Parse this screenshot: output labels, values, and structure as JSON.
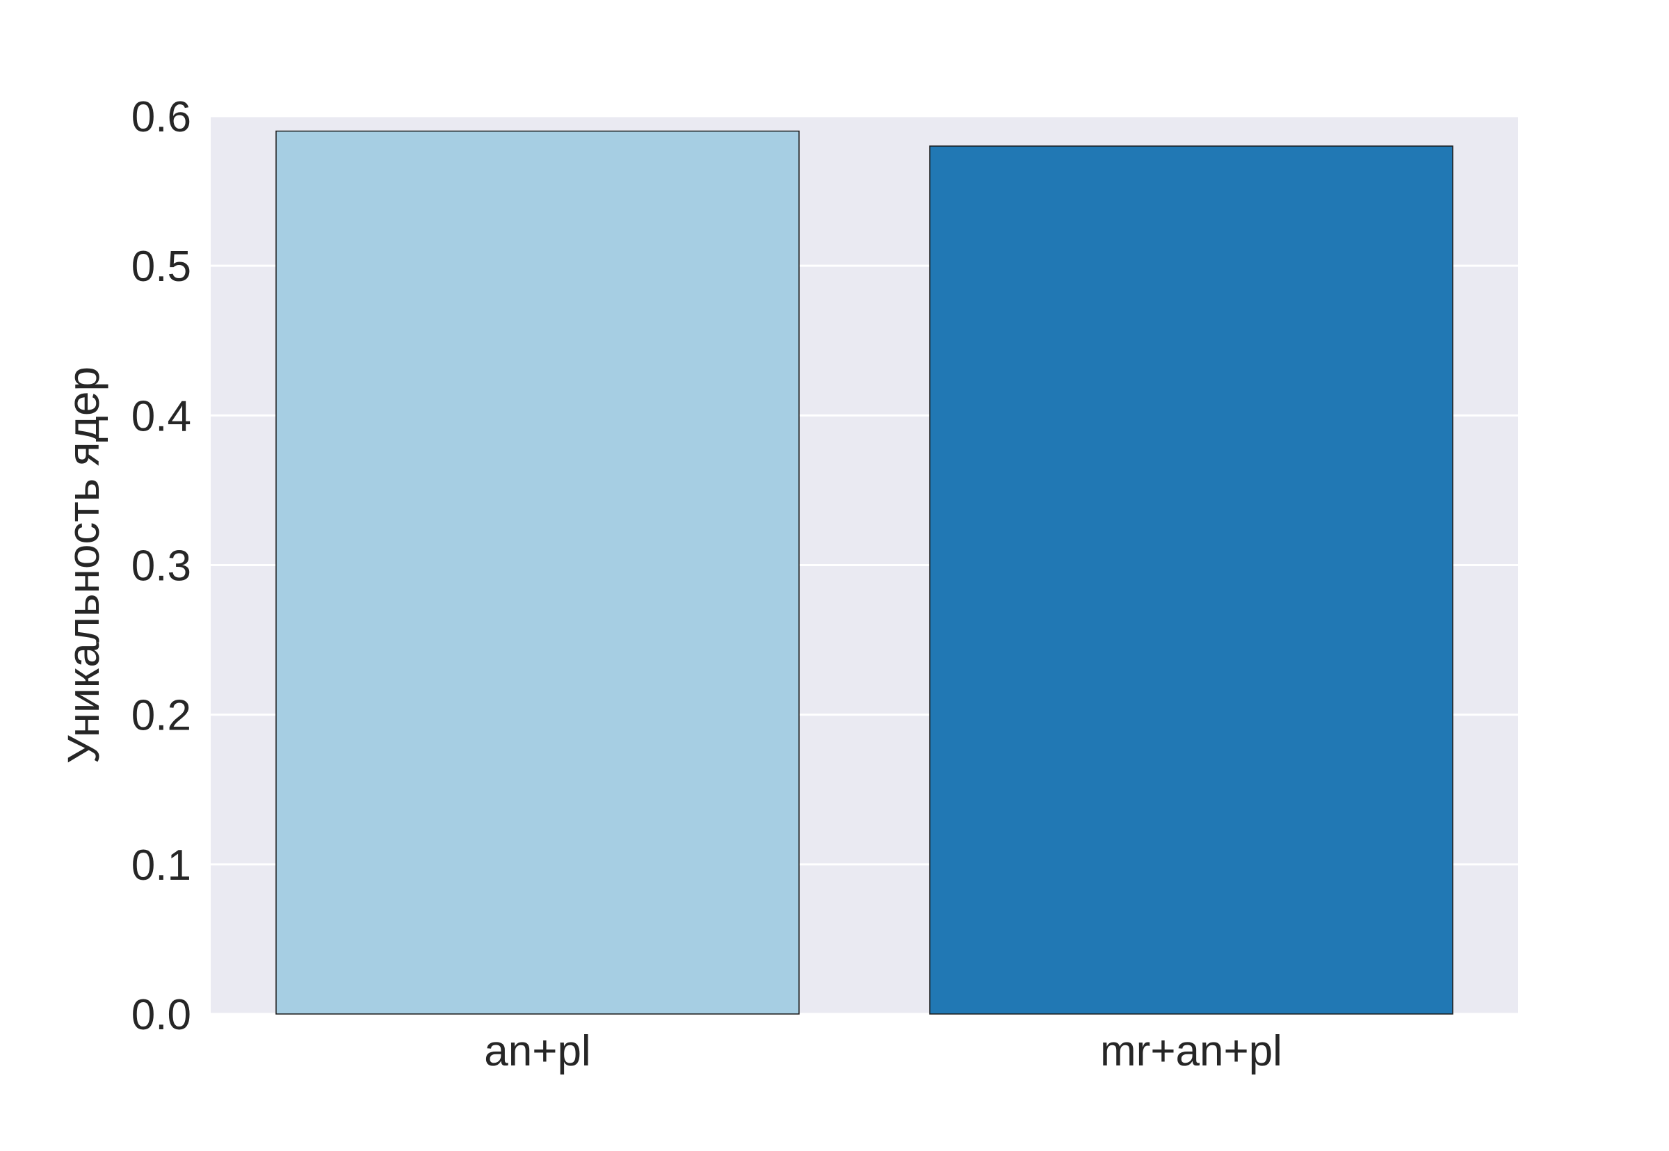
{
  "chart_data": {
    "type": "bar",
    "title": "",
    "xlabel": "",
    "ylabel": "Уникальность ядер",
    "categories": [
      "an+pl",
      "mr+an+pl"
    ],
    "values": [
      0.59,
      0.58
    ],
    "colors": [
      "#a6cee3",
      "#2178b4"
    ],
    "bar_edge_color": "#1a1a1a",
    "ylim": [
      0,
      0.6
    ],
    "yticks": [
      0.0,
      0.1,
      0.2,
      0.3,
      0.4,
      0.5,
      0.6
    ],
    "ytick_labels": [
      "0.0",
      "0.1",
      "0.2",
      "0.3",
      "0.4",
      "0.5",
      "0.6"
    ],
    "grid": "horizontal",
    "background_color": "#eaeaf2",
    "grid_color": "#ffffff"
  }
}
